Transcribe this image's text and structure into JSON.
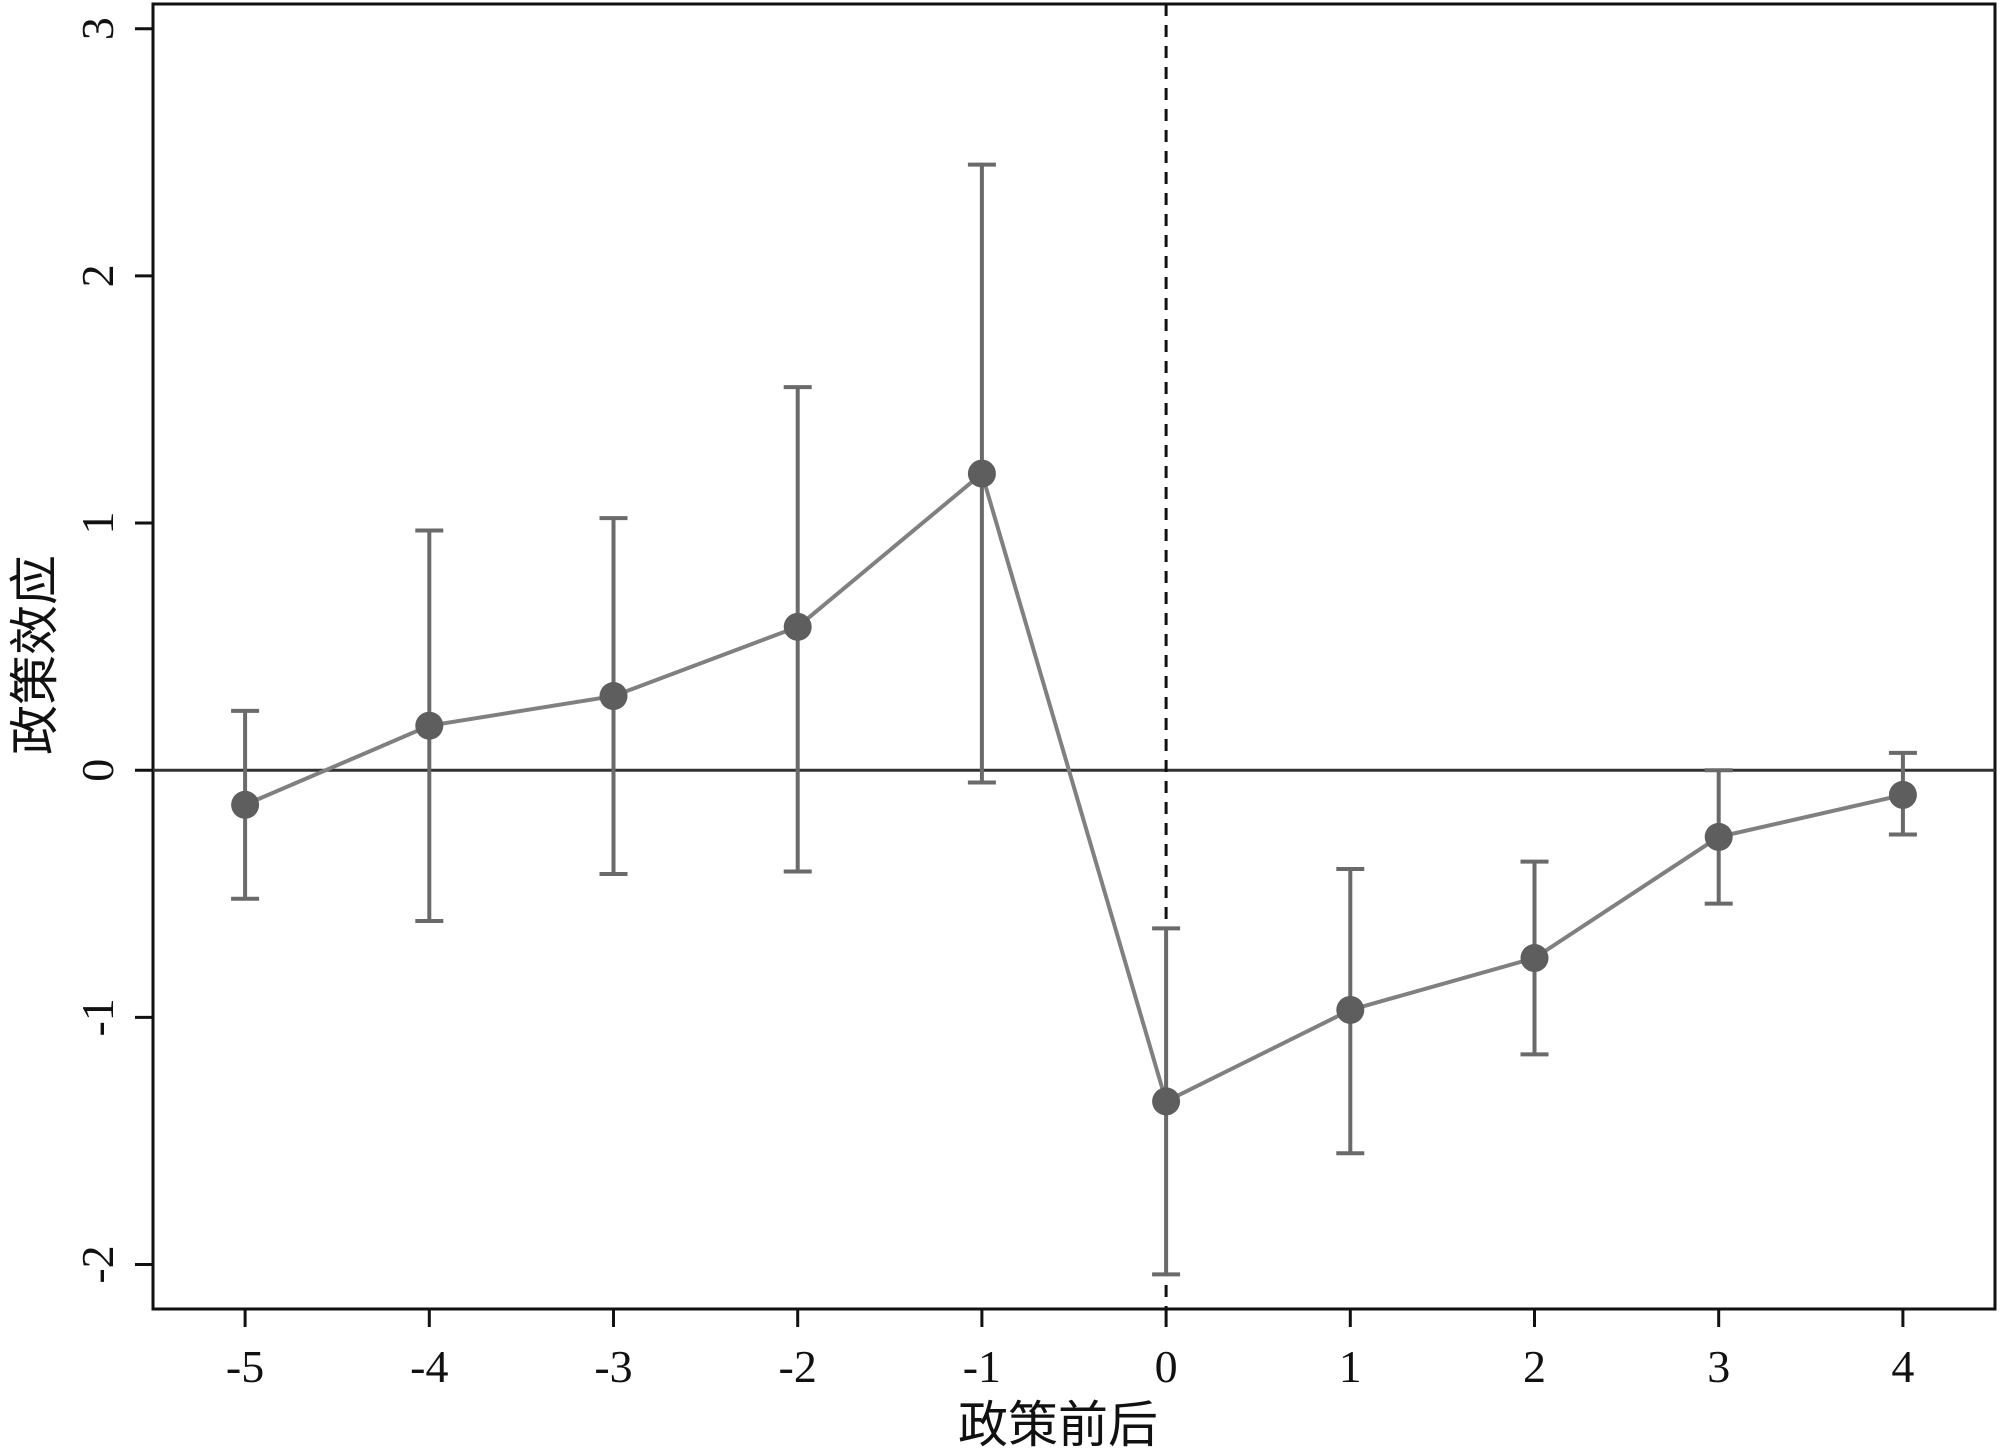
{
  "chart_data": {
    "type": "line",
    "title": "",
    "xlabel": "政策前后",
    "ylabel": "政策效应",
    "x": [
      -5,
      -4,
      -3,
      -2,
      -1,
      0,
      1,
      2,
      3,
      4
    ],
    "series": [
      {
        "name": "",
        "values": [
          -0.14,
          0.18,
          0.3,
          0.58,
          1.2,
          -1.34,
          -0.97,
          -0.76,
          -0.27,
          -0.1
        ],
        "ci_lower": [
          -0.52,
          -0.61,
          -0.42,
          -0.41,
          -0.05,
          -2.04,
          -1.55,
          -1.15,
          -0.54,
          -0.26
        ],
        "ci_upper": [
          0.24,
          0.97,
          1.02,
          1.55,
          2.45,
          -0.64,
          -0.4,
          -0.37,
          0.0,
          0.07
        ]
      }
    ],
    "xlim": [
      -5.5,
      4.5
    ],
    "ylim": [
      -2.18,
      3.1
    ],
    "xticks": [
      "-5",
      "-4",
      "-3",
      "-2",
      "-1",
      "0",
      "1",
      "2",
      "3",
      "4"
    ],
    "yticks": [
      "-2",
      "-1",
      "0",
      "1",
      "2",
      "3"
    ],
    "reference_lines": {
      "horizontal_y": 0,
      "vertical_x_dashed": 0
    },
    "grid": false,
    "colors": {
      "line": "#808080",
      "marker": "#5e5e5e",
      "errorbar": "#6a6a6a",
      "axis": "#111111",
      "zero_line": "#333333"
    }
  }
}
